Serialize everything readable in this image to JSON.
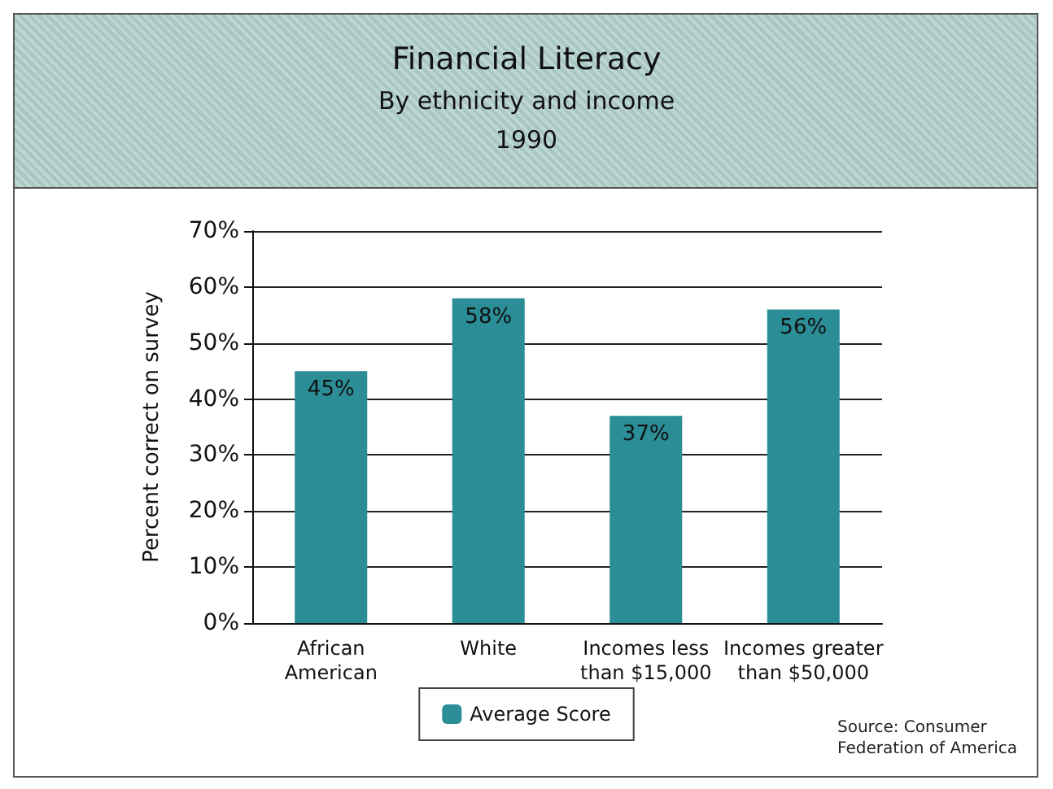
{
  "chart_data": {
    "type": "bar",
    "title": "Financial Literacy",
    "subtitle": "By ethnicity and income\n1990",
    "ylabel": "Percent correct on survey",
    "categories": [
      "African\nAmerican",
      "White",
      "Incomes less\nthan $15,000",
      "Incomes greater\nthan $50,000"
    ],
    "series": [
      {
        "name": "Average Score",
        "color": "#2b8d96",
        "values": [
          45,
          58,
          37,
          56
        ],
        "value_labels": [
          "45%",
          "58%",
          "37%",
          "56%"
        ]
      }
    ],
    "ylim": [
      0,
      70
    ],
    "yticks": [
      {
        "value": 0,
        "label": "0%"
      },
      {
        "value": 10,
        "label": "10%"
      },
      {
        "value": 20,
        "label": "20%"
      },
      {
        "value": 30,
        "label": "30%"
      },
      {
        "value": 40,
        "label": "40%"
      },
      {
        "value": 50,
        "label": "50%"
      },
      {
        "value": 60,
        "label": "60%"
      },
      {
        "value": 70,
        "label": "70%"
      }
    ],
    "grid": "y",
    "legend": "bottom",
    "annotations": [
      "Source: Consumer\nFederation of America"
    ]
  }
}
